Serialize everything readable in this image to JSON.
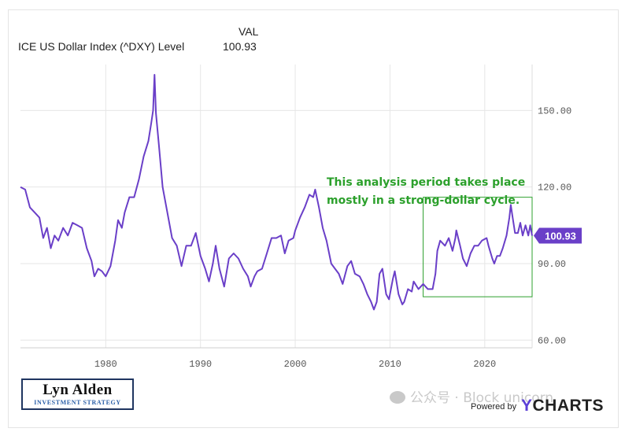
{
  "header": {
    "col_label": "VAL",
    "series_name": "ICE US Dollar Index (^DXY) Level",
    "series_value": "100.93"
  },
  "annotation": {
    "line1": "This analysis period takes place",
    "line2": "mostly in a strong-dollar cycle.",
    "color": "#2ca02c",
    "box_x_range": [
      2013.5,
      2025.0
    ],
    "box_y_range": [
      77,
      116
    ]
  },
  "last_value_label": "100.93",
  "logo": {
    "name": "Lyn Alden",
    "tagline": "INVESTMENT STRATEGY"
  },
  "watermark": "公众号 · Block unicorn",
  "credit": {
    "powered": "Powered by",
    "brand_y": "Y",
    "brand_rest": "CHARTS"
  },
  "colors": {
    "line": "#6a3fc8",
    "grid": "#e6e6e6",
    "axis_text": "#555555",
    "badge": "#6a3fc8"
  },
  "chart_data": {
    "type": "line",
    "title": "",
    "xlabel": "",
    "ylabel": "",
    "xlim": [
      1971.0,
      2025.0
    ],
    "ylim": [
      57,
      168
    ],
    "x_ticks": [
      1980,
      1990,
      2000,
      2010,
      2020
    ],
    "x_tick_labels": [
      "1980",
      "1990",
      "2000",
      "2010",
      "2020"
    ],
    "y_ticks": [
      60,
      90,
      120,
      150
    ],
    "y_tick_labels": [
      "60.00",
      "90.00",
      "120.00",
      "150.00"
    ],
    "grid": true,
    "series": [
      {
        "name": "ICE US Dollar Index (^DXY) Level",
        "points": [
          [
            1971.0,
            120.0
          ],
          [
            1971.5,
            119.0
          ],
          [
            1972.0,
            112.0
          ],
          [
            1972.5,
            110.0
          ],
          [
            1973.0,
            108.0
          ],
          [
            1973.4,
            100.0
          ],
          [
            1973.8,
            104.0
          ],
          [
            1974.2,
            96.0
          ],
          [
            1974.6,
            101.0
          ],
          [
            1975.0,
            99.0
          ],
          [
            1975.5,
            104.0
          ],
          [
            1976.0,
            101.0
          ],
          [
            1976.5,
            106.0
          ],
          [
            1977.0,
            105.0
          ],
          [
            1977.5,
            104.0
          ],
          [
            1978.0,
            96.0
          ],
          [
            1978.5,
            91.0
          ],
          [
            1978.8,
            85.0
          ],
          [
            1979.2,
            88.0
          ],
          [
            1979.6,
            87.0
          ],
          [
            1980.0,
            85.0
          ],
          [
            1980.5,
            89.0
          ],
          [
            1981.0,
            99.0
          ],
          [
            1981.3,
            107.0
          ],
          [
            1981.7,
            104.0
          ],
          [
            1982.0,
            110.0
          ],
          [
            1982.5,
            116.0
          ],
          [
            1983.0,
            116.0
          ],
          [
            1983.5,
            123.0
          ],
          [
            1984.0,
            132.0
          ],
          [
            1984.5,
            138.0
          ],
          [
            1984.8,
            145.0
          ],
          [
            1985.0,
            150.0
          ],
          [
            1985.15,
            164.0
          ],
          [
            1985.3,
            149.0
          ],
          [
            1985.6,
            137.0
          ],
          [
            1986.0,
            120.0
          ],
          [
            1986.5,
            110.0
          ],
          [
            1987.0,
            100.0
          ],
          [
            1987.5,
            97.0
          ],
          [
            1988.0,
            89.0
          ],
          [
            1988.5,
            97.0
          ],
          [
            1989.0,
            97.0
          ],
          [
            1989.5,
            102.0
          ],
          [
            1990.0,
            93.0
          ],
          [
            1990.5,
            88.0
          ],
          [
            1990.9,
            83.0
          ],
          [
            1991.3,
            90.0
          ],
          [
            1991.6,
            97.0
          ],
          [
            1992.0,
            88.0
          ],
          [
            1992.5,
            81.0
          ],
          [
            1993.0,
            92.0
          ],
          [
            1993.5,
            94.0
          ],
          [
            1994.0,
            92.0
          ],
          [
            1994.5,
            88.0
          ],
          [
            1995.0,
            85.0
          ],
          [
            1995.3,
            81.0
          ],
          [
            1995.7,
            85.0
          ],
          [
            1996.0,
            87.0
          ],
          [
            1996.5,
            88.0
          ],
          [
            1997.0,
            94.0
          ],
          [
            1997.5,
            100.0
          ],
          [
            1998.0,
            100.0
          ],
          [
            1998.5,
            101.0
          ],
          [
            1998.9,
            94.0
          ],
          [
            1999.3,
            99.0
          ],
          [
            1999.8,
            100.0
          ],
          [
            2000.0,
            103.0
          ],
          [
            2000.5,
            108.0
          ],
          [
            2001.0,
            112.0
          ],
          [
            2001.5,
            117.0
          ],
          [
            2001.9,
            116.0
          ],
          [
            2002.1,
            119.0
          ],
          [
            2002.5,
            112.0
          ],
          [
            2002.9,
            104.0
          ],
          [
            2003.3,
            99.0
          ],
          [
            2003.8,
            90.0
          ],
          [
            2004.2,
            88.0
          ],
          [
            2004.6,
            86.0
          ],
          [
            2005.0,
            82.0
          ],
          [
            2005.5,
            89.0
          ],
          [
            2005.9,
            91.0
          ],
          [
            2006.3,
            86.0
          ],
          [
            2006.8,
            85.0
          ],
          [
            2007.2,
            82.0
          ],
          [
            2007.6,
            78.0
          ],
          [
            2008.0,
            75.0
          ],
          [
            2008.3,
            72.0
          ],
          [
            2008.6,
            75.0
          ],
          [
            2008.9,
            86.0
          ],
          [
            2009.2,
            88.0
          ],
          [
            2009.6,
            78.0
          ],
          [
            2009.9,
            76.0
          ],
          [
            2010.3,
            84.0
          ],
          [
            2010.5,
            87.0
          ],
          [
            2010.9,
            78.0
          ],
          [
            2011.3,
            74.0
          ],
          [
            2011.5,
            75.0
          ],
          [
            2011.9,
            80.0
          ],
          [
            2012.3,
            79.0
          ],
          [
            2012.5,
            83.0
          ],
          [
            2013.0,
            80.0
          ],
          [
            2013.5,
            82.0
          ],
          [
            2014.0,
            80.0
          ],
          [
            2014.5,
            80.0
          ],
          [
            2014.8,
            86.0
          ],
          [
            2015.0,
            95.0
          ],
          [
            2015.3,
            99.0
          ],
          [
            2015.8,
            97.0
          ],
          [
            2016.2,
            100.0
          ],
          [
            2016.6,
            95.0
          ],
          [
            2016.9,
            100.0
          ],
          [
            2017.0,
            103.0
          ],
          [
            2017.4,
            97.0
          ],
          [
            2017.7,
            92.0
          ],
          [
            2018.1,
            89.0
          ],
          [
            2018.5,
            94.0
          ],
          [
            2018.9,
            97.0
          ],
          [
            2019.3,
            97.0
          ],
          [
            2019.7,
            99.0
          ],
          [
            2020.2,
            100.0
          ],
          [
            2020.4,
            97.0
          ],
          [
            2020.8,
            92.0
          ],
          [
            2021.0,
            90.0
          ],
          [
            2021.3,
            93.0
          ],
          [
            2021.6,
            93.0
          ],
          [
            2021.9,
            96.0
          ],
          [
            2022.3,
            101.0
          ],
          [
            2022.6,
            108.0
          ],
          [
            2022.75,
            113.0
          ],
          [
            2022.95,
            108.0
          ],
          [
            2023.2,
            102.0
          ],
          [
            2023.5,
            102.0
          ],
          [
            2023.75,
            106.0
          ],
          [
            2024.0,
            101.0
          ],
          [
            2024.3,
            105.0
          ],
          [
            2024.6,
            101.0
          ],
          [
            2024.8,
            105.0
          ],
          [
            2025.0,
            100.93
          ]
        ]
      }
    ]
  }
}
